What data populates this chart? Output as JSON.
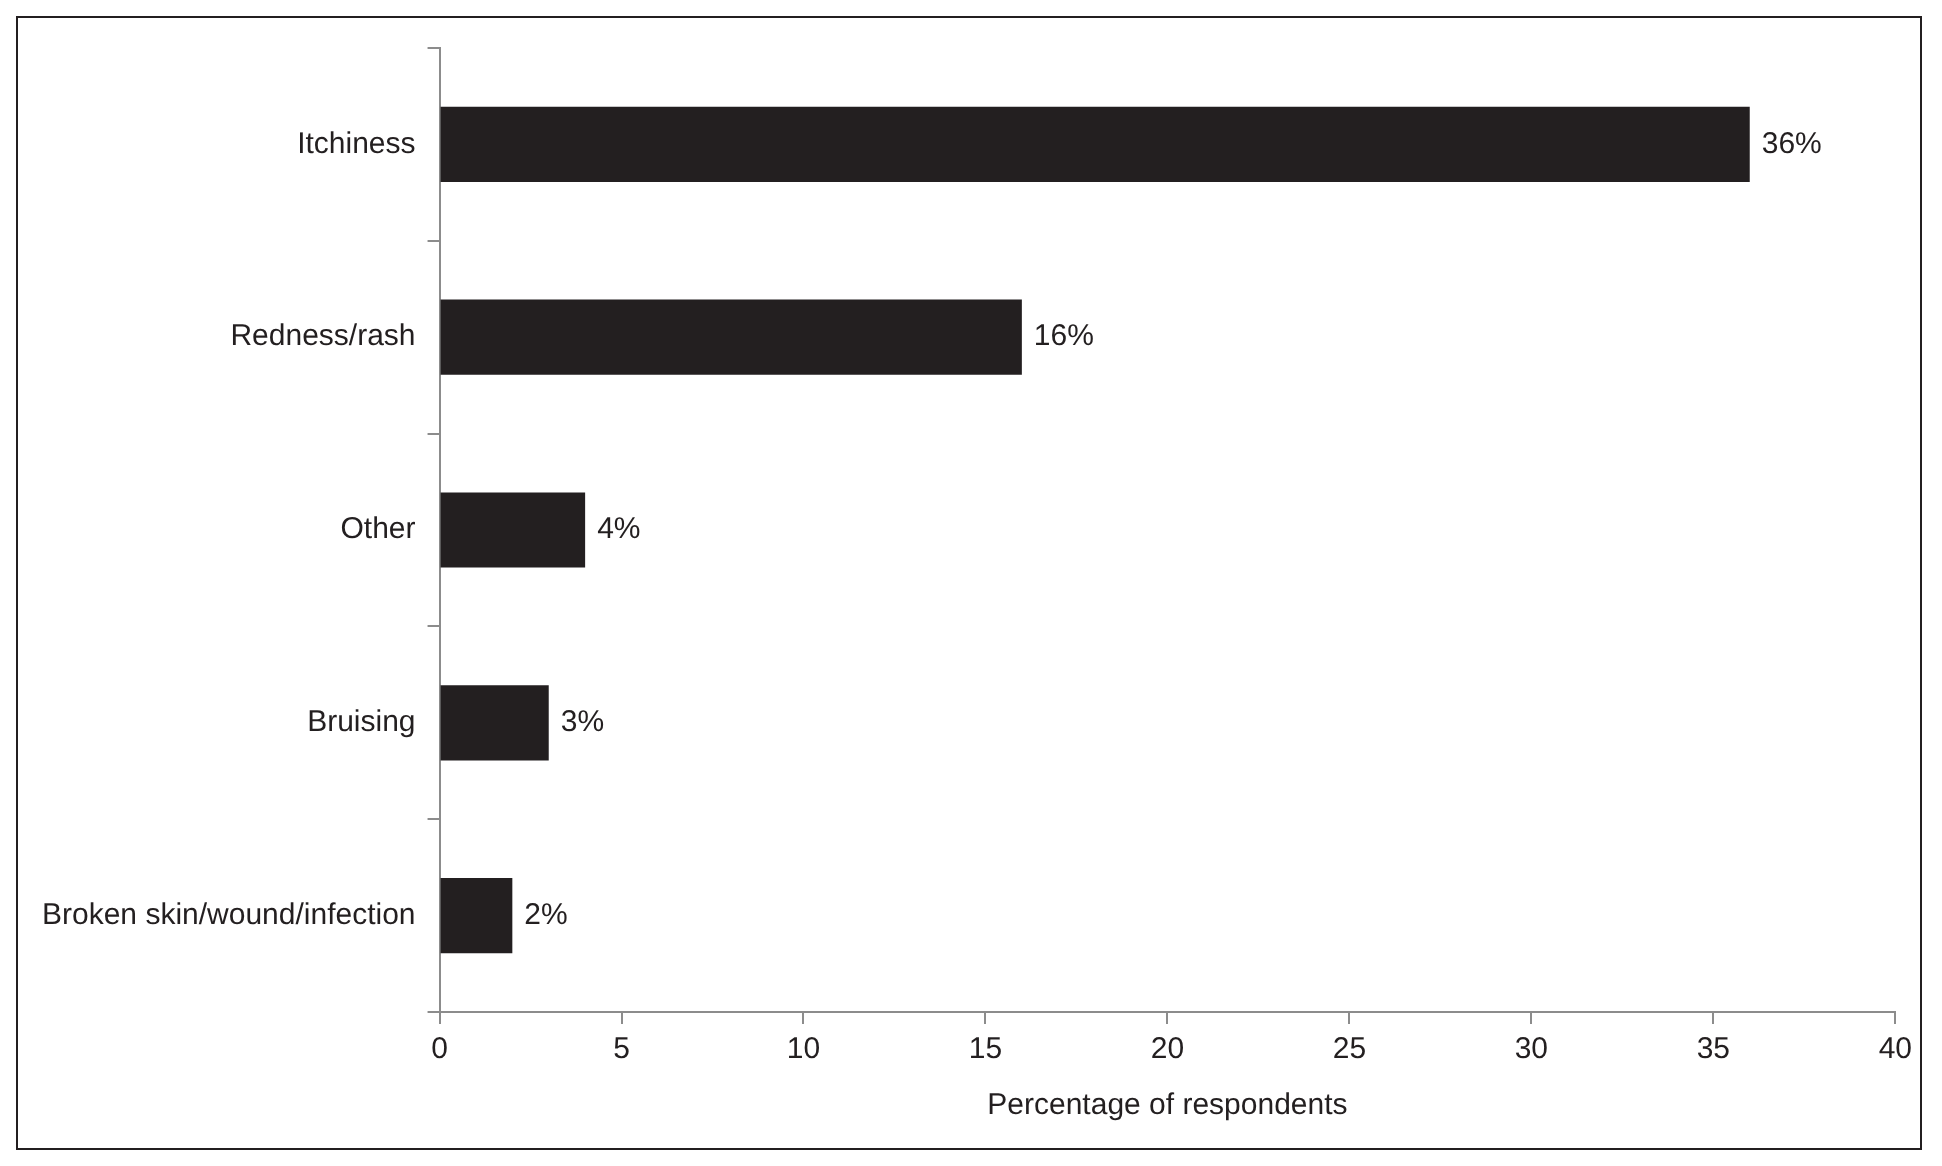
{
  "chart_data": {
    "type": "bar",
    "orientation": "horizontal",
    "xlabel": "Percentage of respondents",
    "categories": [
      "Itchiness",
      "Redness/rash",
      "Other",
      "Bruising",
      "Broken skin/wound/infection"
    ],
    "values": [
      36,
      16,
      4,
      3,
      2
    ],
    "value_labels": [
      "36%",
      "16%",
      "4%",
      "3%",
      "2%"
    ],
    "color": "#231f20",
    "xlim": [
      0,
      40
    ],
    "xticks": [
      0,
      5,
      10,
      15,
      20,
      25,
      30,
      35,
      40
    ],
    "grid": false,
    "legend": false
  }
}
